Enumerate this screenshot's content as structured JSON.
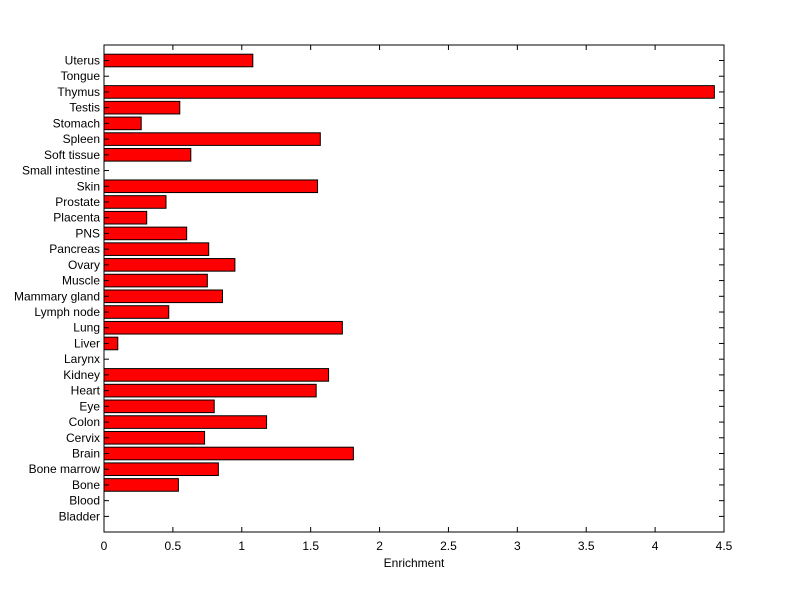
{
  "chart_data": {
    "type": "bar",
    "orientation": "horizontal",
    "xlabel": "Enrichment",
    "ylabel": "",
    "title": "",
    "xlim": [
      0,
      4.5
    ],
    "xticks": [
      "0",
      "0.5",
      "1",
      "1.5",
      "2",
      "2.5",
      "3",
      "3.5",
      "4",
      "4.5"
    ],
    "bar_color": "#ff0000",
    "bar_edge_color": "#000000",
    "grid": false,
    "categories": [
      "Uterus",
      "Tongue",
      "Thymus",
      "Testis",
      "Stomach",
      "Spleen",
      "Soft tissue",
      "Small intestine",
      "Skin",
      "Prostate",
      "Placenta",
      "PNS",
      "Pancreas",
      "Ovary",
      "Muscle",
      "Mammary gland",
      "Lymph node",
      "Lung",
      "Liver",
      "Larynx",
      "Kidney",
      "Heart",
      "Eye",
      "Colon",
      "Cervix",
      "Brain",
      "Bone marrow",
      "Bone",
      "Blood",
      "Bladder"
    ],
    "values": [
      1.08,
      0,
      4.43,
      0.55,
      0.27,
      1.57,
      0.63,
      0,
      1.55,
      0.45,
      0.31,
      0.6,
      0.76,
      0.95,
      0.75,
      0.86,
      0.47,
      1.73,
      0.1,
      0,
      1.63,
      1.54,
      0.8,
      1.18,
      0.73,
      1.81,
      0.83,
      0.54,
      0,
      0
    ]
  }
}
